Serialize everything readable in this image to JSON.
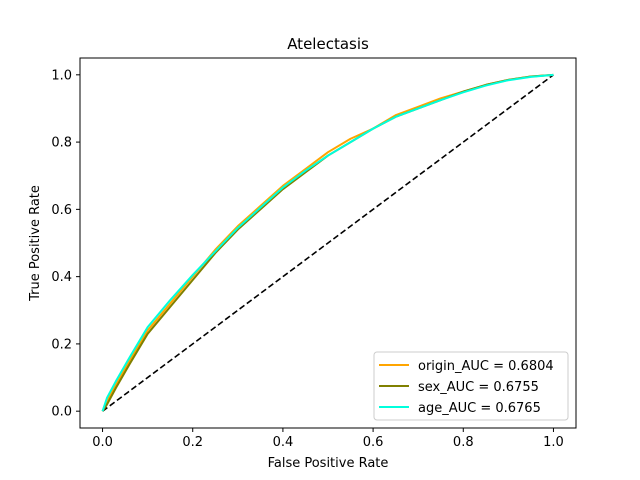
{
  "chart_data": {
    "type": "line",
    "title": "Atelectasis",
    "xlabel": "False Positive Rate",
    "ylabel": "True Positive Rate",
    "xlim": [
      -0.05,
      1.05
    ],
    "ylim": [
      -0.05,
      1.05
    ],
    "xticks": [
      0.0,
      0.2,
      0.4,
      0.6,
      0.8,
      1.0
    ],
    "yticks": [
      0.0,
      0.2,
      0.4,
      0.6,
      0.8,
      1.0
    ],
    "xtick_labels": [
      "0.0",
      "0.2",
      "0.4",
      "0.6",
      "0.8",
      "1.0"
    ],
    "ytick_labels": [
      "0.0",
      "0.2",
      "0.4",
      "0.6",
      "0.8",
      "1.0"
    ],
    "grid": false,
    "legend_position": "lower-right",
    "series": [
      {
        "name": "origin_AUC = 0.6804",
        "color": "#FFA500",
        "x": [
          0.0,
          0.01,
          0.03,
          0.06,
          0.1,
          0.15,
          0.2,
          0.25,
          0.3,
          0.35,
          0.4,
          0.45,
          0.5,
          0.55,
          0.6,
          0.65,
          0.7,
          0.75,
          0.8,
          0.85,
          0.9,
          0.95,
          1.0
        ],
        "y": [
          0.0,
          0.03,
          0.08,
          0.15,
          0.24,
          0.32,
          0.4,
          0.48,
          0.55,
          0.61,
          0.67,
          0.72,
          0.77,
          0.81,
          0.84,
          0.88,
          0.905,
          0.93,
          0.95,
          0.97,
          0.985,
          0.995,
          1.0
        ]
      },
      {
        "name": "sex_AUC = 0.6755",
        "color": "#808000",
        "x": [
          0.0,
          0.01,
          0.03,
          0.06,
          0.1,
          0.15,
          0.2,
          0.25,
          0.3,
          0.35,
          0.4,
          0.45,
          0.5,
          0.55,
          0.6,
          0.65,
          0.7,
          0.75,
          0.8,
          0.85,
          0.9,
          0.95,
          1.0
        ],
        "y": [
          0.0,
          0.02,
          0.07,
          0.14,
          0.23,
          0.31,
          0.39,
          0.47,
          0.54,
          0.6,
          0.66,
          0.71,
          0.76,
          0.8,
          0.84,
          0.875,
          0.9,
          0.925,
          0.95,
          0.97,
          0.985,
          0.995,
          1.0
        ]
      },
      {
        "name": "age_AUC = 0.6765",
        "color": "#00FFDD",
        "x": [
          0.0,
          0.01,
          0.03,
          0.06,
          0.1,
          0.15,
          0.2,
          0.25,
          0.3,
          0.35,
          0.4,
          0.45,
          0.5,
          0.55,
          0.6,
          0.65,
          0.7,
          0.75,
          0.8,
          0.85,
          0.9,
          0.95,
          1.0
        ],
        "y": [
          0.0,
          0.04,
          0.09,
          0.16,
          0.25,
          0.33,
          0.405,
          0.475,
          0.545,
          0.605,
          0.665,
          0.715,
          0.76,
          0.8,
          0.84,
          0.875,
          0.9,
          0.925,
          0.948,
          0.968,
          0.984,
          0.994,
          1.0
        ]
      }
    ],
    "reference_line": {
      "x": [
        0.0,
        1.0
      ],
      "y": [
        0.0,
        1.0
      ],
      "color": "#000000",
      "style": "dashed"
    }
  }
}
